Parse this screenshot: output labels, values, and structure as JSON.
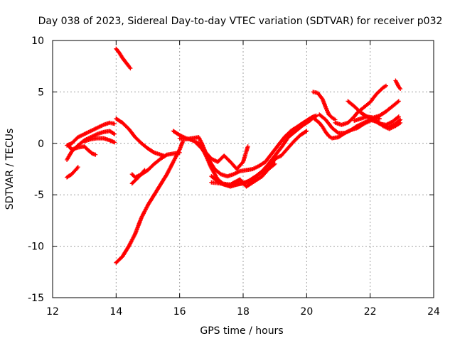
{
  "chart_data": {
    "type": "scatter",
    "title": "Day 038 of 2023, Sidereal Day-to-day VTEC variation (SDTVAR) for receiver p032",
    "xlabel": "GPS time / hours",
    "ylabel": "SDTVAR / TECUs",
    "xlim": [
      12,
      24
    ],
    "ylim": [
      -15,
      10
    ],
    "xticks": [
      12,
      14,
      16,
      18,
      20,
      22,
      24
    ],
    "yticks": [
      -15,
      -10,
      -5,
      0,
      5,
      10
    ],
    "xtick_labels": [
      "12",
      "14",
      "16",
      "18",
      "20",
      "22",
      "24"
    ],
    "ytick_labels": [
      "-15",
      "-10",
      "-5",
      "0",
      "5",
      "10"
    ],
    "grid": true,
    "marker": "+",
    "color": "#ff0000",
    "series": [
      {
        "name": "arc-1",
        "points": [
          [
            12.45,
            -0.2
          ],
          [
            12.6,
            0.0
          ],
          [
            12.8,
            0.6
          ],
          [
            13.0,
            0.9
          ],
          [
            13.2,
            1.2
          ],
          [
            13.4,
            1.5
          ],
          [
            13.6,
            1.8
          ],
          [
            13.8,
            2.0
          ],
          [
            13.95,
            1.9
          ]
        ]
      },
      {
        "name": "arc-2",
        "points": [
          [
            12.45,
            -1.6
          ],
          [
            12.6,
            -0.8
          ],
          [
            12.8,
            -0.2
          ],
          [
            13.0,
            0.3
          ],
          [
            13.2,
            0.6
          ],
          [
            13.4,
            0.9
          ],
          [
            13.6,
            1.1
          ],
          [
            13.8,
            1.2
          ],
          [
            13.95,
            0.9
          ]
        ]
      },
      {
        "name": "arc-3",
        "points": [
          [
            12.45,
            -3.3
          ],
          [
            12.6,
            -3.0
          ],
          [
            12.75,
            -2.5
          ],
          [
            12.8,
            -2.3
          ]
        ]
      },
      {
        "name": "arc-4",
        "points": [
          [
            12.5,
            -0.2
          ],
          [
            12.6,
            -0.6
          ],
          [
            12.8,
            -0.4
          ],
          [
            13.0,
            -0.3
          ],
          [
            13.1,
            -0.6
          ],
          [
            13.25,
            -1.0
          ],
          [
            13.35,
            -1.1
          ]
        ]
      },
      {
        "name": "arc-5",
        "points": [
          [
            13.0,
            0.2
          ],
          [
            13.2,
            0.4
          ],
          [
            13.4,
            0.5
          ],
          [
            13.6,
            0.5
          ],
          [
            13.8,
            0.3
          ],
          [
            13.95,
            0.1
          ]
        ]
      },
      {
        "name": "arc-6",
        "points": [
          [
            14.0,
            9.2
          ],
          [
            14.1,
            8.8
          ],
          [
            14.2,
            8.3
          ],
          [
            14.3,
            7.9
          ],
          [
            14.4,
            7.5
          ],
          [
            14.45,
            7.3
          ]
        ]
      },
      {
        "name": "arc-7",
        "points": [
          [
            14.0,
            2.4
          ],
          [
            14.2,
            2.0
          ],
          [
            14.4,
            1.4
          ],
          [
            14.6,
            0.6
          ],
          [
            14.8,
            0.0
          ],
          [
            15.0,
            -0.5
          ],
          [
            15.2,
            -0.9
          ],
          [
            15.4,
            -1.1
          ],
          [
            15.5,
            -1.2
          ]
        ]
      },
      {
        "name": "arc-8",
        "points": [
          [
            14.0,
            -11.6
          ],
          [
            14.2,
            -11.0
          ],
          [
            14.4,
            -10.0
          ],
          [
            14.6,
            -8.8
          ],
          [
            14.8,
            -7.2
          ],
          [
            15.0,
            -6.0
          ],
          [
            15.2,
            -5.0
          ],
          [
            15.4,
            -4.0
          ],
          [
            15.6,
            -3.0
          ],
          [
            15.8,
            -1.8
          ],
          [
            16.0,
            -0.6
          ],
          [
            16.1,
            0.2
          ]
        ]
      },
      {
        "name": "arc-9",
        "points": [
          [
            14.5,
            -3.0
          ],
          [
            14.6,
            -3.3
          ],
          [
            14.8,
            -3.0
          ],
          [
            15.0,
            -2.6
          ],
          [
            15.2,
            -2.0
          ],
          [
            15.4,
            -1.5
          ],
          [
            15.6,
            -1.1
          ],
          [
            15.8,
            -1.0
          ],
          [
            16.0,
            -0.9
          ]
        ]
      },
      {
        "name": "arc-10",
        "points": [
          [
            14.5,
            -3.9
          ],
          [
            14.7,
            -3.3
          ],
          [
            14.9,
            -2.6
          ]
        ]
      },
      {
        "name": "arc-11",
        "points": [
          [
            15.8,
            1.2
          ],
          [
            16.0,
            0.8
          ],
          [
            16.2,
            0.5
          ],
          [
            16.4,
            0.3
          ],
          [
            16.6,
            0.0
          ],
          [
            16.8,
            -1.0
          ],
          [
            17.0,
            -2.4
          ],
          [
            17.2,
            -3.5
          ],
          [
            17.4,
            -4.0
          ],
          [
            17.6,
            -4.1
          ],
          [
            17.8,
            -4.0
          ],
          [
            18.0,
            -3.9
          ],
          [
            18.2,
            -3.6
          ],
          [
            18.4,
            -3.2
          ],
          [
            18.6,
            -2.7
          ],
          [
            18.8,
            -2.0
          ],
          [
            19.0,
            -1.2
          ],
          [
            19.2,
            -0.4
          ],
          [
            19.4,
            0.5
          ],
          [
            19.6,
            1.2
          ],
          [
            19.8,
            1.8
          ],
          [
            20.0,
            2.2
          ],
          [
            20.2,
            2.6
          ],
          [
            20.3,
            2.7
          ]
        ]
      },
      {
        "name": "arc-12",
        "points": [
          [
            16.0,
            0.5
          ],
          [
            16.2,
            0.4
          ],
          [
            16.4,
            0.5
          ],
          [
            16.6,
            0.6
          ],
          [
            16.7,
            0.0
          ],
          [
            16.9,
            -1.5
          ],
          [
            17.1,
            -2.5
          ],
          [
            17.3,
            -3.0
          ],
          [
            17.5,
            -3.2
          ],
          [
            17.7,
            -3.0
          ],
          [
            17.9,
            -2.7
          ],
          [
            18.1,
            -2.6
          ],
          [
            18.3,
            -2.5
          ],
          [
            18.5,
            -2.2
          ],
          [
            18.7,
            -1.8
          ],
          [
            18.9,
            -1.0
          ],
          [
            19.1,
            -0.2
          ],
          [
            19.3,
            0.6
          ],
          [
            19.5,
            1.2
          ],
          [
            19.7,
            1.6
          ],
          [
            19.9,
            2.0
          ],
          [
            20.1,
            2.4
          ],
          [
            20.3,
            2.6
          ]
        ]
      },
      {
        "name": "arc-13",
        "points": [
          [
            16.5,
            0.1
          ],
          [
            16.8,
            -0.8
          ],
          [
            17.0,
            -1.5
          ],
          [
            17.2,
            -1.8
          ],
          [
            17.4,
            -1.2
          ],
          [
            17.6,
            -1.8
          ],
          [
            17.8,
            -2.5
          ],
          [
            18.0,
            -1.8
          ],
          [
            18.15,
            -0.3
          ]
        ]
      },
      {
        "name": "arc-14",
        "points": [
          [
            17.0,
            -3.8
          ],
          [
            17.3,
            -3.9
          ],
          [
            17.6,
            -4.0
          ],
          [
            17.9,
            -3.5
          ],
          [
            18.1,
            -4.2
          ],
          [
            18.3,
            -3.8
          ],
          [
            18.6,
            -3.2
          ],
          [
            18.8,
            -2.5
          ],
          [
            19.0,
            -1.5
          ],
          [
            19.2,
            -1.2
          ],
          [
            19.4,
            -0.5
          ],
          [
            19.6,
            0.2
          ],
          [
            19.8,
            0.8
          ],
          [
            20.0,
            1.2
          ]
        ]
      },
      {
        "name": "arc-15",
        "points": [
          [
            17.0,
            -3.2
          ],
          [
            17.3,
            -3.9
          ],
          [
            17.6,
            -4.2
          ],
          [
            17.9,
            -3.9
          ],
          [
            18.2,
            -3.7
          ],
          [
            18.5,
            -3.0
          ],
          [
            18.8,
            -2.5
          ],
          [
            19.0,
            -2.0
          ]
        ]
      },
      {
        "name": "arc-16",
        "points": [
          [
            19.5,
            0.8
          ],
          [
            19.7,
            1.3
          ],
          [
            19.9,
            1.8
          ],
          [
            20.1,
            2.2
          ],
          [
            20.2,
            2.5
          ],
          [
            20.4,
            2.0
          ],
          [
            20.5,
            1.6
          ],
          [
            20.6,
            1.1
          ],
          [
            20.7,
            0.7
          ],
          [
            20.8,
            0.5
          ],
          [
            21.0,
            0.6
          ],
          [
            21.2,
            1.0
          ],
          [
            21.4,
            1.3
          ],
          [
            21.6,
            1.5
          ],
          [
            21.8,
            1.9
          ],
          [
            22.0,
            2.2
          ],
          [
            22.2,
            2.5
          ],
          [
            22.3,
            2.4
          ]
        ]
      },
      {
        "name": "arc-17",
        "points": [
          [
            20.2,
            5.0
          ],
          [
            20.35,
            4.9
          ],
          [
            20.5,
            4.3
          ],
          [
            20.6,
            3.5
          ],
          [
            20.7,
            2.8
          ],
          [
            20.8,
            2.5
          ],
          [
            20.9,
            2.3
          ]
        ]
      },
      {
        "name": "arc-18",
        "points": [
          [
            20.4,
            2.8
          ],
          [
            20.6,
            2.3
          ],
          [
            20.8,
            1.5
          ],
          [
            21.0,
            1.0
          ],
          [
            21.2,
            1.0
          ],
          [
            21.4,
            1.3
          ],
          [
            21.6,
            1.7
          ],
          [
            21.8,
            2.0
          ],
          [
            22.0,
            2.3
          ],
          [
            22.2,
            2.1
          ],
          [
            22.4,
            1.8
          ],
          [
            22.6,
            1.6
          ],
          [
            22.8,
            1.9
          ],
          [
            22.95,
            2.3
          ]
        ]
      },
      {
        "name": "arc-19",
        "points": [
          [
            20.9,
            2.0
          ],
          [
            21.1,
            1.8
          ],
          [
            21.3,
            2.0
          ],
          [
            21.5,
            2.6
          ],
          [
            21.6,
            3.0
          ],
          [
            21.8,
            3.5
          ],
          [
            22.0,
            4.0
          ],
          [
            22.2,
            4.8
          ],
          [
            22.4,
            5.4
          ],
          [
            22.5,
            5.6
          ]
        ]
      },
      {
        "name": "arc-20",
        "points": [
          [
            21.3,
            4.1
          ],
          [
            21.5,
            3.6
          ],
          [
            21.7,
            3.0
          ],
          [
            21.9,
            2.6
          ],
          [
            22.1,
            2.5
          ],
          [
            22.3,
            2.7
          ],
          [
            22.5,
            3.1
          ],
          [
            22.7,
            3.6
          ],
          [
            22.9,
            4.1
          ]
        ]
      },
      {
        "name": "arc-21",
        "points": [
          [
            21.5,
            2.2
          ],
          [
            21.7,
            2.4
          ],
          [
            21.9,
            2.6
          ],
          [
            22.1,
            2.3
          ],
          [
            22.3,
            1.9
          ],
          [
            22.5,
            1.8
          ],
          [
            22.7,
            2.1
          ],
          [
            22.9,
            2.6
          ]
        ]
      },
      {
        "name": "arc-22",
        "points": [
          [
            22.2,
            2.2
          ],
          [
            22.4,
            1.7
          ],
          [
            22.6,
            1.4
          ],
          [
            22.8,
            1.7
          ],
          [
            22.95,
            2.0
          ]
        ]
      },
      {
        "name": "arc-23",
        "points": [
          [
            22.8,
            6.1
          ],
          [
            22.85,
            5.8
          ],
          [
            22.9,
            5.5
          ],
          [
            22.95,
            5.3
          ]
        ]
      }
    ]
  }
}
